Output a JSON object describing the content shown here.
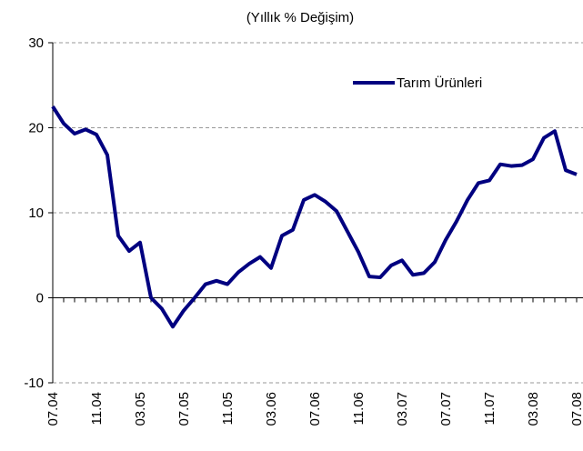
{
  "chart_data": {
    "type": "line",
    "title": "(Yıllık % Değişim)",
    "categories": [
      "07.04",
      null,
      null,
      null,
      "11.04",
      null,
      null,
      null,
      "03.05",
      null,
      null,
      null,
      "07.05",
      null,
      null,
      null,
      "11.05",
      null,
      null,
      null,
      "03.06",
      null,
      null,
      null,
      "07.06",
      null,
      null,
      null,
      "11.06",
      null,
      null,
      null,
      "03.07",
      null,
      null,
      null,
      "07.07",
      null,
      null,
      null,
      "11.07",
      null,
      null,
      null,
      "03.08",
      null,
      null,
      null,
      "07.08"
    ],
    "series": [
      {
        "name": "Tarım Ürünleri",
        "color": "#000080",
        "values": [
          22.5,
          20.5,
          19.3,
          19.8,
          19.2,
          16.8,
          7.3,
          5.5,
          6.5,
          0,
          -1.3,
          -3.4,
          -1.5,
          0,
          1.6,
          2,
          1.6,
          3,
          4,
          4.8,
          3.5,
          7.3,
          8,
          11.5,
          12.1,
          11.3,
          10.2,
          7.8,
          5.4,
          2.5,
          2.4,
          3.8,
          4.4,
          2.7,
          2.9,
          4.2,
          6.8,
          9,
          11.5,
          13.5,
          13.8,
          15.7,
          15.5,
          15.6,
          16.3,
          18.8,
          19.6,
          15,
          14.5
        ]
      }
    ],
    "ylim": [
      -10,
      30
    ],
    "yticks": [
      -10,
      0,
      10,
      20,
      30
    ],
    "grid": true,
    "legend": "top-right"
  }
}
